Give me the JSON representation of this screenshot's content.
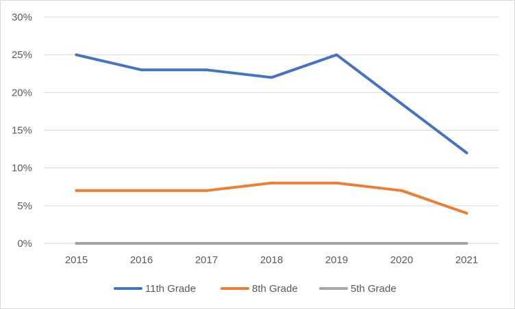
{
  "chart_data": {
    "type": "line",
    "title": "",
    "xlabel": "",
    "ylabel": "",
    "x": [
      "2015",
      "2016",
      "2017",
      "2018",
      "2019",
      "2020",
      "2021"
    ],
    "yticks": [
      0,
      5,
      10,
      15,
      20,
      25,
      30
    ],
    "ytick_labels": [
      "0%",
      "5%",
      "10%",
      "15%",
      "20%",
      "25%",
      "30%"
    ],
    "ylim": [
      0,
      30
    ],
    "y_unit": "%",
    "grid": true,
    "legend_position": "bottom",
    "series": [
      {
        "name": "11th Grade",
        "color": "#4472c4",
        "values": [
          25,
          23,
          23,
          22,
          25,
          18.5,
          12
        ]
      },
      {
        "name": "8th Grade",
        "color": "#ed7d31",
        "values": [
          7,
          7,
          7,
          8,
          8,
          7,
          4
        ]
      },
      {
        "name": "5th Grade",
        "color": "#a5a5a5",
        "values": [
          0,
          0,
          0,
          0,
          0,
          0,
          0
        ]
      }
    ]
  }
}
